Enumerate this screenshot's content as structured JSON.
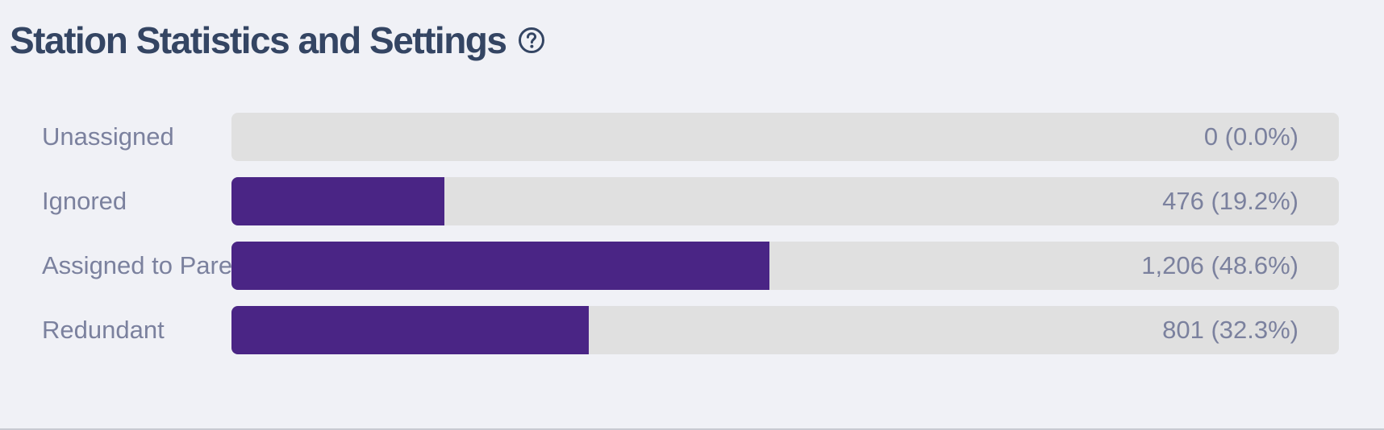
{
  "header": {
    "title": "Station Statistics and Settings",
    "help_icon": "question-circle-icon"
  },
  "colors": {
    "bar_fill": "#4a2585",
    "bar_track": "#e0e0e0",
    "title": "#344563",
    "label": "#7b819e",
    "background": "#f0f1f6"
  },
  "stats": [
    {
      "label": "Unassigned",
      "value_text": "0 (0.0%)",
      "percent": 0.0
    },
    {
      "label": "Ignored",
      "value_text": "476 (19.2%)",
      "percent": 19.2
    },
    {
      "label": "Assigned to Parent",
      "value_text": "1,206 (48.6%)",
      "percent": 48.6
    },
    {
      "label": "Redundant",
      "value_text": "801 (32.3%)",
      "percent": 32.3
    }
  ]
}
